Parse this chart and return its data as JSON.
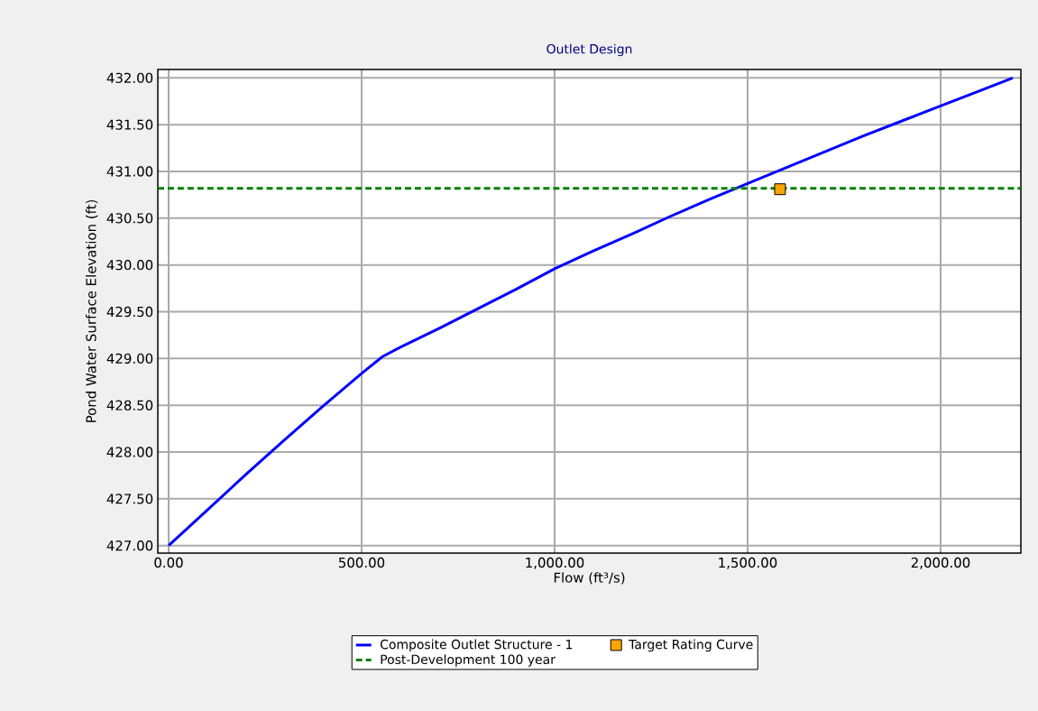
{
  "chart_data": {
    "type": "line",
    "title": "Outlet Design",
    "xlabel": "Flow (ft³/s)",
    "ylabel": "Pond Water Surface Elevation (ft)",
    "xlim": [
      -28,
      2208
    ],
    "ylim": [
      426.92,
      432.09
    ],
    "xticks": [
      {
        "value": 0,
        "label": "0.00"
      },
      {
        "value": 500,
        "label": "500.00"
      },
      {
        "value": 1000,
        "label": "1,000.00"
      },
      {
        "value": 1500,
        "label": "1,500.00"
      },
      {
        "value": 2000,
        "label": "2,000.00"
      }
    ],
    "yticks": [
      {
        "value": 427,
        "label": "427.00"
      },
      {
        "value": 427.5,
        "label": "427.50"
      },
      {
        "value": 428,
        "label": "428.00"
      },
      {
        "value": 428.5,
        "label": "428.50"
      },
      {
        "value": 429,
        "label": "429.00"
      },
      {
        "value": 429.5,
        "label": "429.50"
      },
      {
        "value": 430,
        "label": "430.00"
      },
      {
        "value": 430.5,
        "label": "430.50"
      },
      {
        "value": 431,
        "label": "431.00"
      },
      {
        "value": 431.5,
        "label": "431.50"
      },
      {
        "value": 432,
        "label": "432.00"
      }
    ],
    "grid": true,
    "legend": "bottom",
    "series": [
      {
        "name": "Composite Outlet Structure - 1",
        "color": "#0000ff",
        "x": [
          0,
          100,
          200,
          300,
          400,
          500,
          554,
          600,
          700,
          800,
          900,
          1000,
          1100,
          1200,
          1300,
          1400,
          1500,
          1600,
          1700,
          1800,
          1900,
          2000,
          2100,
          2187
        ],
        "values": [
          427.0,
          427.38,
          427.76,
          428.13,
          428.49,
          428.84,
          429.02,
          429.12,
          429.32,
          429.53,
          429.74,
          429.96,
          430.15,
          430.33,
          430.52,
          430.7,
          430.87,
          431.04,
          431.21,
          431.38,
          431.54,
          431.7,
          431.86,
          432.0
        ]
      },
      {
        "name": "Target Rating Curve",
        "color": "#ffa500",
        "type": "scatter",
        "marker": "square",
        "x": [
          1584
        ],
        "values": [
          430.81
        ]
      }
    ],
    "ref_lines": [
      {
        "axis": "y",
        "value": 430.82,
        "label": "Post-Development 100 year",
        "color": "#008000",
        "line_style": "dashed"
      }
    ]
  }
}
